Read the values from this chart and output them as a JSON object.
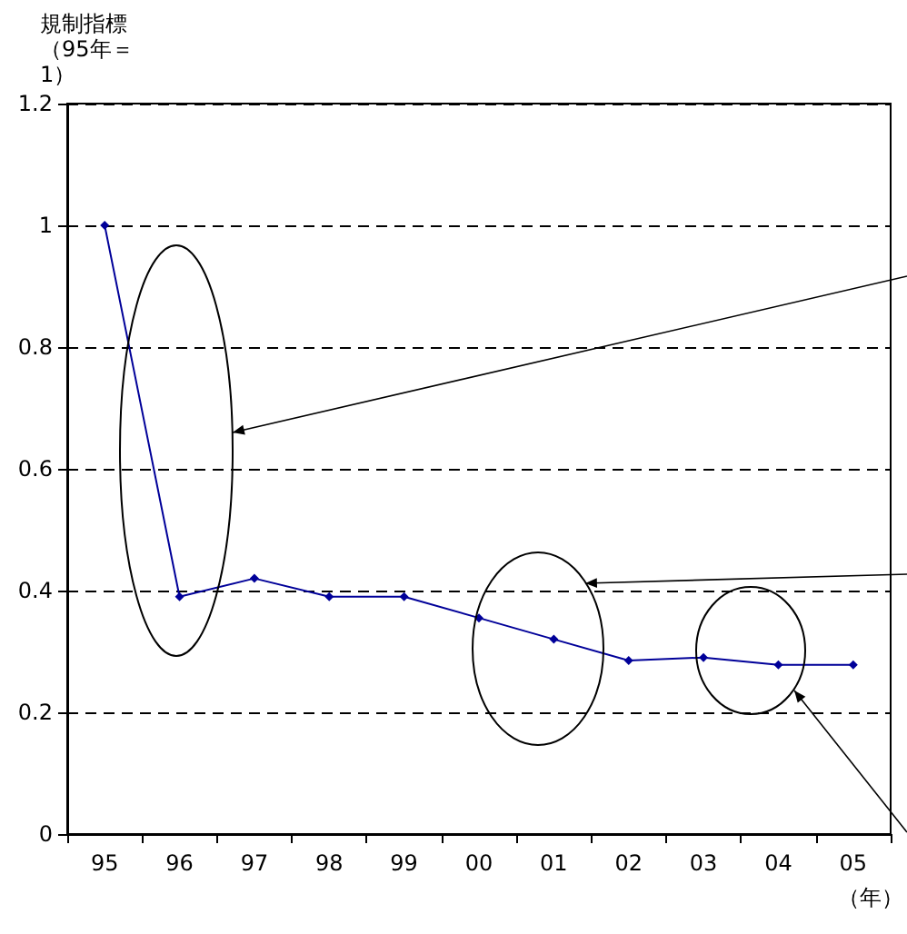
{
  "chart_data": {
    "type": "line",
    "ylabel": "規制指標（95年＝1）",
    "xlabel": "（年）",
    "categories": [
      "95",
      "96",
      "97",
      "98",
      "99",
      "00",
      "01",
      "02",
      "03",
      "04",
      "05"
    ],
    "series": [
      {
        "color": "#000099",
        "values": [
          1.0,
          0.39,
          0.42,
          0.39,
          0.39,
          0.355,
          0.32,
          0.285,
          0.29,
          0.278,
          0.278
        ]
      }
    ],
    "ylim": [
      0,
      1.2
    ],
    "yticks": [
      0,
      0.2,
      0.4,
      0.6,
      0.8,
      1,
      1.2
    ],
    "grid": "y",
    "marker": "diamond",
    "line_style": "solid"
  }
}
